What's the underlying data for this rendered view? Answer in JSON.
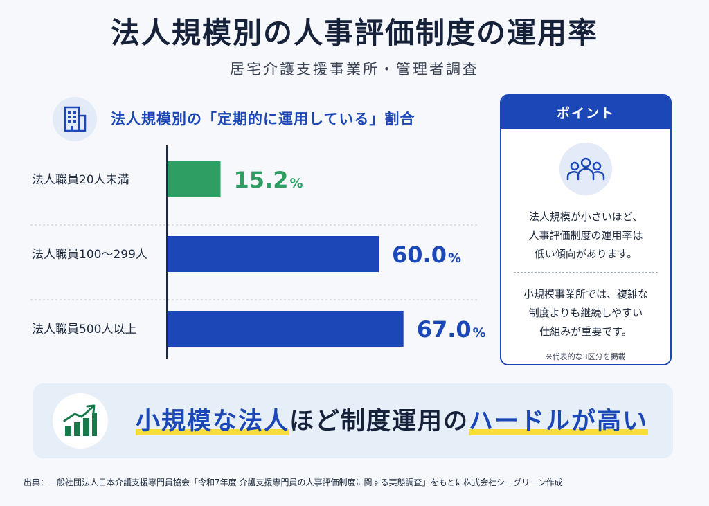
{
  "title": "法人規模別の人事評価制度の運用率",
  "subtitle": "居宅介護支援事業所・管理者調査",
  "section": {
    "icon": "building-icon",
    "title": "法人規模別の「定期的に運用している」割合"
  },
  "chart_data": {
    "type": "bar",
    "orientation": "horizontal",
    "title": "法人規模別の「定期的に運用している」割合",
    "categories": [
      "法人職員20人未満",
      "法人職員100〜299人",
      "法人職員500人以上"
    ],
    "values": [
      15.2,
      60.0,
      67.0
    ],
    "value_labels": [
      "15.2",
      "60.0",
      "67.0"
    ],
    "unit": "%",
    "xlim": [
      0,
      100
    ],
    "grid": false,
    "colors": [
      "#2e9e62",
      "#1b48b6",
      "#1b48b6"
    ]
  },
  "point": {
    "header": "ポイント",
    "icon": "people-group-icon",
    "text1": "法人規模が小さいほど、\n人事評価制度の運用率は\n低い傾向があります。",
    "text2": "小規模事業所では、複雑な\n制度よりも継続しやすい\n仕組みが重要です。",
    "note": "※代表的な3区分を掲載"
  },
  "banner": {
    "icon": "growth-chart-icon",
    "part1": "小規模な法人",
    "part2": "ほど制度運用の",
    "part3": "ハードルが高い"
  },
  "source": "出典：一般社団法人日本介護支援専門員協会「令和7年度 介護支援専門員の人事評価制度に関する実態調査」をもとに株式会社シーグリーン作成",
  "colors": {
    "primary": "#1b48b6",
    "green": "#2e9e62",
    "highlight": "#f7dd3c"
  }
}
